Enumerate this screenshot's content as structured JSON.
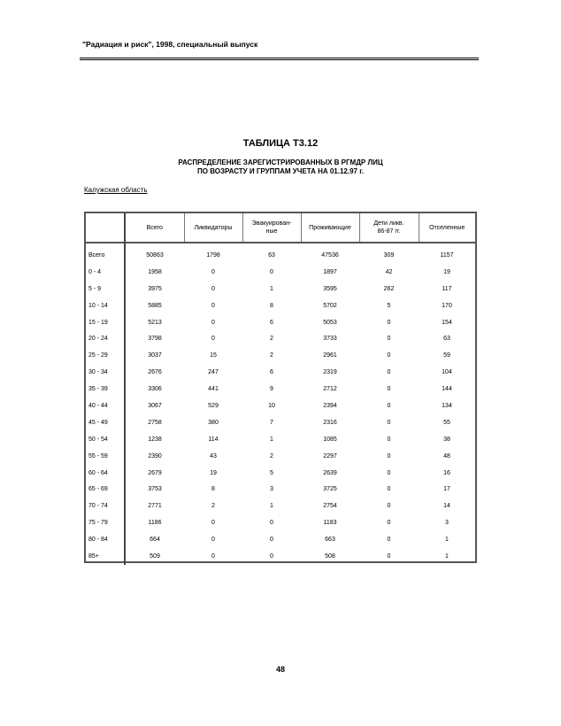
{
  "running_header": "\"Радиация и риск\", 1998, специальный выпуск",
  "title": "ТАБЛИЦА Т3.12",
  "subtitle_lines": [
    "РАСПРЕДЕЛЕНИЕ ЗАРЕГИСТРИРОВАННЫХ В РГМДР ЛИЦ",
    "ПО ВОЗРАСТУ И ГРУППАМ УЧЕТА НА 01.12.97 г."
  ],
  "region": "Калужская область",
  "table": {
    "headers": [
      "",
      "Всего",
      "Ликвидаторы",
      "Эвакуирован-\nные",
      "Проживающие",
      "Дети ликв.\n86-87 гг.",
      "Отселенные"
    ],
    "rows": [
      [
        "Всего",
        "50863",
        "1798",
        "63",
        "47536",
        "309",
        "1157"
      ],
      [
        "0 - 4",
        "1958",
        "0",
        "0",
        "1897",
        "42",
        "19"
      ],
      [
        "5 - 9",
        "3975",
        "0",
        "1",
        "3595",
        "262",
        "117"
      ],
      [
        "10 - 14",
        "5885",
        "0",
        "8",
        "5702",
        "5",
        "170"
      ],
      [
        "15 - 19",
        "5213",
        "0",
        "6",
        "5053",
        "0",
        "154"
      ],
      [
        "20 - 24",
        "3798",
        "0",
        "2",
        "3733",
        "0",
        "63"
      ],
      [
        "25 - 29",
        "3037",
        "15",
        "2",
        "2961",
        "0",
        "59"
      ],
      [
        "30 - 34",
        "2676",
        "247",
        "6",
        "2319",
        "0",
        "104"
      ],
      [
        "35 - 39",
        "3306",
        "441",
        "9",
        "2712",
        "0",
        "144"
      ],
      [
        "40 - 44",
        "3067",
        "529",
        "10",
        "2394",
        "0",
        "134"
      ],
      [
        "45 - 49",
        "2758",
        "380",
        "7",
        "2316",
        "0",
        "55"
      ],
      [
        "50 - 54",
        "1238",
        "114",
        "1",
        "1085",
        "0",
        "38"
      ],
      [
        "55 - 59",
        "2390",
        "43",
        "2",
        "2297",
        "0",
        "48"
      ],
      [
        "60 - 64",
        "2679",
        "19",
        "5",
        "2639",
        "0",
        "16"
      ],
      [
        "65 - 69",
        "3753",
        "8",
        "3",
        "3725",
        "0",
        "17"
      ],
      [
        "70 - 74",
        "2771",
        "2",
        "1",
        "2754",
        "0",
        "14"
      ],
      [
        "75 - 79",
        "1186",
        "0",
        "0",
        "1183",
        "0",
        "3"
      ],
      [
        "80 - 84",
        "664",
        "0",
        "0",
        "663",
        "0",
        "1"
      ],
      [
        "85+",
        "509",
        "0",
        "0",
        "508",
        "0",
        "1"
      ]
    ]
  },
  "page_number": "48"
}
